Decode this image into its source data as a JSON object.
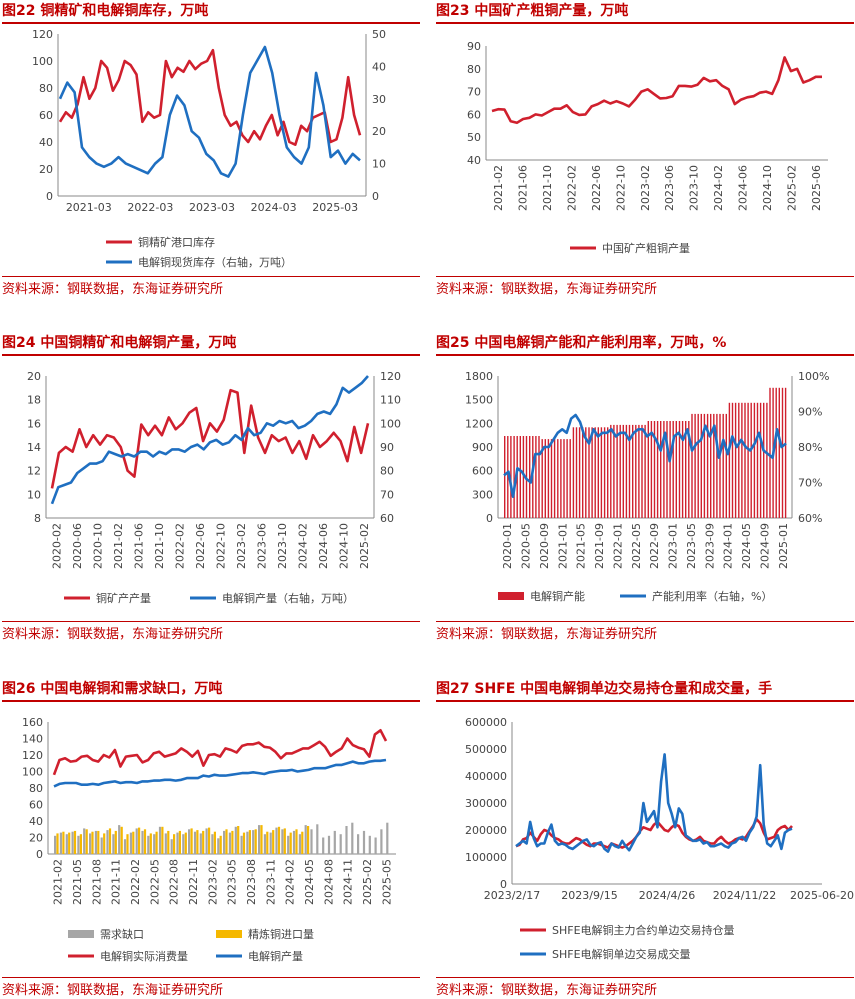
{
  "colors": {
    "red": "#d0202e",
    "blue": "#1f6fc1",
    "gray": "#a6a6a6",
    "gold": "#f5b800",
    "title": "#c00000"
  },
  "panels": [
    {
      "title": "图22  铜精矿和电解铜库存，万吨",
      "source": "资料来源：钢联数据，东海证券研究所"
    },
    {
      "title": "图23  中国矿产粗铜产量，万吨",
      "source": "资料来源：钢联数据，东海证券研究所"
    },
    {
      "title": "图24  中国铜精矿和电解铜产量，万吨",
      "source": "资料来源：钢联数据，东海证券研究所"
    },
    {
      "title": "图25  中国电解铜产能和产能利用率，万吨，%",
      "source": "资料来源：钢联数据，东海证券研究所"
    },
    {
      "title": "图26  中国电解铜和需求缺口，万吨",
      "source": "资料来源：钢联数据，东海证券研究所"
    },
    {
      "title": "图27  SHFE 中国电解铜单边交易持仓量和成交量，手",
      "source": "资料来源：钢联数据，东海证券研究所"
    }
  ],
  "chart_data": [
    {
      "type": "line",
      "id": "c22",
      "yticks": [
        "0",
        "20",
        "40",
        "60",
        "80",
        "100",
        "120"
      ],
      "y2ticks": [
        "0",
        "10",
        "20",
        "30",
        "40",
        "50"
      ],
      "xticks": [
        "2021-03",
        "2022-03",
        "2023-03",
        "2024-03",
        "2025-03"
      ],
      "ylim": [
        0,
        120
      ],
      "y2lim": [
        0,
        50
      ],
      "series": [
        {
          "name": "铜精矿港口库存",
          "axis": "left",
          "color": "red",
          "values": [
            55,
            62,
            58,
            68,
            88,
            72,
            80,
            100,
            95,
            78,
            86,
            100,
            97,
            90,
            55,
            62,
            58,
            60,
            100,
            88,
            95,
            92,
            100,
            94,
            98,
            100,
            108,
            80,
            60,
            52,
            55,
            45,
            40,
            48,
            42,
            52,
            60,
            45,
            55,
            40,
            38,
            52,
            48,
            58,
            60,
            62,
            40,
            42,
            58,
            88,
            60,
            45
          ]
        },
        {
          "name": "电解铜现货库存（右轴，万吨）",
          "axis": "right",
          "color": "blue",
          "values": [
            30,
            35,
            32,
            15,
            12,
            10,
            9,
            10,
            12,
            10,
            9,
            8,
            7,
            10,
            12,
            25,
            31,
            28,
            20,
            18,
            13,
            11,
            7,
            6,
            10,
            25,
            38,
            42,
            46,
            38,
            25,
            15,
            12,
            10,
            15,
            38,
            28,
            12,
            14,
            10,
            13,
            11
          ]
        }
      ],
      "legend": [
        "铜精矿港口库存",
        "电解铜现货库存（右轴，万吨）"
      ]
    },
    {
      "type": "line",
      "id": "c23",
      "yticks": [
        "40",
        "50",
        "60",
        "70",
        "80",
        "90"
      ],
      "ylim": [
        40,
        90
      ],
      "xticks": [
        "2021-02",
        "2021-06",
        "2021-10",
        "2022-02",
        "2022-06",
        "2022-10",
        "2023-02",
        "2023-06",
        "2023-10",
        "2024-02",
        "2024-06",
        "2024-10",
        "2025-02",
        "2025-06"
      ],
      "series": [
        {
          "name": "中国矿产粗铜产量",
          "color": "red",
          "values": [
            61.5,
            62.3,
            62.1,
            57,
            56.3,
            58,
            58.5,
            60,
            59.5,
            61,
            62.5,
            62.5,
            64,
            61,
            59.8,
            60,
            63.5,
            64.5,
            66,
            64.8,
            65.8,
            64.8,
            63.5,
            66.5,
            70,
            71,
            69,
            67,
            67.2,
            68,
            72.5,
            72.5,
            72.2,
            73,
            76,
            74.5,
            75,
            72.5,
            71,
            64.5,
            66.5,
            67.5,
            68,
            69.5,
            70,
            69,
            75,
            85,
            79,
            80,
            74,
            75,
            76.5,
            76.5
          ]
        }
      ],
      "legend": [
        "中国矿产粗铜产量"
      ]
    },
    {
      "type": "line",
      "id": "c24",
      "yticks": [
        "8",
        "10",
        "12",
        "14",
        "16",
        "18",
        "20"
      ],
      "y2ticks": [
        "60",
        "70",
        "80",
        "90",
        "100",
        "110",
        "120"
      ],
      "ylim": [
        8,
        20
      ],
      "y2lim": [
        60,
        120
      ],
      "xticks": [
        "2020-02",
        "2020-06",
        "2020-10",
        "2021-02",
        "2021-06",
        "2021-10",
        "2022-02",
        "2022-06",
        "2022-10",
        "2023-02",
        "2023-06",
        "2023-10",
        "2024-02",
        "2024-06",
        "2024-10",
        "2025-02"
      ],
      "series": [
        {
          "name": "铜矿产产量",
          "axis": "left",
          "color": "red",
          "values": [
            10.5,
            13.5,
            14,
            13.6,
            15.5,
            14,
            15,
            14.2,
            15,
            14.8,
            14,
            12,
            11.5,
            15.9,
            15,
            15.8,
            15,
            16.5,
            15.5,
            16,
            16.9,
            17.3,
            14.5,
            16,
            15.3,
            16.3,
            18.8,
            18.6,
            13.5,
            17.5,
            14.8,
            13.5,
            15,
            14.5,
            14.8,
            13.5,
            14.5,
            13,
            15,
            14,
            14.5,
            15.2,
            14.5,
            12.8,
            15.7,
            13.5,
            16
          ]
        },
        {
          "name": "电解铜产量（右轴，万吨）",
          "axis": "right",
          "color": "blue",
          "values": [
            66,
            73,
            74,
            75,
            79,
            81,
            83,
            83,
            84,
            88,
            87,
            86,
            87,
            86,
            88,
            88,
            86,
            88,
            87,
            89,
            89,
            88,
            90,
            91,
            89,
            92,
            93,
            91,
            92,
            95,
            93,
            98,
            95,
            96,
            100,
            99,
            101,
            100,
            101,
            98,
            99,
            101,
            104,
            105,
            104,
            108,
            115,
            113,
            115,
            117,
            120
          ]
        }
      ],
      "legend": [
        "铜矿产产量",
        "电解铜产量（右轴，万吨）"
      ]
    },
    {
      "type": "bar-line",
      "id": "c25",
      "yticks": [
        "0",
        "300",
        "600",
        "900",
        "1200",
        "1500",
        "1800"
      ],
      "y2ticks": [
        "60%",
        "70%",
        "80%",
        "90%",
        "100%"
      ],
      "ylim": [
        0,
        1800
      ],
      "y2lim": [
        60,
        100
      ],
      "xticks": [
        "2020-01",
        "2020-05",
        "2020-09",
        "2021-01",
        "2021-05",
        "2021-09",
        "2022-01",
        "2022-05",
        "2022-09",
        "2023-01",
        "2023-05",
        "2023-09",
        "2024-01",
        "2024-05",
        "2024-09",
        "2025-01"
      ],
      "bars": {
        "name": "电解铜产能",
        "color": "red",
        "steps": [
          [
            12,
            1040
          ],
          [
            10,
            1000
          ],
          [
            12,
            1150
          ],
          [
            12,
            1180
          ],
          [
            14,
            1230
          ],
          [
            12,
            1320
          ],
          [
            13,
            1460
          ],
          [
            6,
            1650
          ]
        ]
      },
      "series": [
        {
          "name": "产能利用率（右轴，%）",
          "axis": "right",
          "color": "blue",
          "values": [
            72,
            73,
            66,
            74,
            73,
            71,
            70,
            78,
            78,
            80,
            80,
            82,
            84,
            85,
            84,
            88,
            89,
            87,
            83,
            81,
            85,
            83,
            84,
            84,
            85,
            83,
            84,
            84,
            82,
            84,
            85,
            85,
            83,
            84,
            82,
            79,
            84,
            76,
            83,
            84,
            82,
            85,
            79,
            81,
            82,
            86,
            83,
            86,
            77,
            82,
            78,
            83,
            80,
            82,
            80,
            79,
            81,
            84,
            79,
            78,
            77,
            85,
            80,
            81
          ]
        }
      ],
      "legend": [
        "电解铜产能",
        "产能利用率（右轴，%）"
      ]
    },
    {
      "type": "bar-line",
      "id": "c26",
      "yticks": [
        "0",
        "20",
        "40",
        "60",
        "80",
        "100",
        "120",
        "140",
        "160"
      ],
      "ylim": [
        0,
        160
      ],
      "xticks": [
        "2021-02",
        "2021-05",
        "2021-08",
        "2021-11",
        "2022-02",
        "2022-05",
        "2022-08",
        "2022-11",
        "2023-02",
        "2023-05",
        "2023-08",
        "2023-11",
        "2024-02",
        "2024-05",
        "2024-08",
        "2024-11",
        "2025-02",
        "2025-05"
      ],
      "bars_gap": {
        "name": "需求缺口",
        "color": "gray",
        "values": [
          22,
          26,
          24,
          27,
          22,
          31,
          25,
          28,
          20,
          29,
          24,
          35,
          18,
          26,
          31,
          28,
          22,
          24,
          33,
          25,
          18,
          26,
          24,
          30,
          27,
          25,
          31,
          24,
          19,
          28,
          26,
          33,
          22,
          27,
          29,
          35,
          24,
          26,
          32,
          30,
          22,
          28,
          24,
          35,
          30,
          36,
          20,
          22,
          28,
          24,
          34,
          38,
          24,
          28,
          22,
          20,
          30,
          38
        ]
      },
      "bars_import": {
        "name": "精炼铜进口量",
        "color": "gold",
        "values": [
          25,
          27,
          26,
          28,
          24,
          30,
          27,
          28,
          25,
          31,
          28,
          33,
          24,
          27,
          32,
          30,
          25,
          27,
          33,
          28,
          24,
          28,
          26,
          31,
          29,
          28,
          32,
          27,
          22,
          30,
          28,
          34,
          26,
          29,
          30,
          35,
          27,
          29,
          33,
          31,
          26,
          30,
          27,
          34,
          0,
          0,
          0,
          0,
          0,
          0,
          0,
          0,
          0,
          0,
          0,
          0,
          0,
          0
        ]
      },
      "series": [
        {
          "name": "电解铜实际消费量",
          "color": "red",
          "values": [
            96,
            114,
            116,
            112,
            113,
            118,
            119,
            114,
            112,
            120,
            117,
            126,
            106,
            118,
            119,
            120,
            111,
            114,
            122,
            124,
            118,
            120,
            122,
            128,
            124,
            118,
            125,
            107,
            120,
            121,
            118,
            128,
            126,
            123,
            131,
            133,
            133,
            135,
            130,
            129,
            124,
            116,
            122,
            122,
            125,
            128,
            128,
            132,
            136,
            130,
            119,
            124,
            128,
            140,
            132,
            129,
            127,
            118,
            145,
            150,
            137
          ]
        },
        {
          "name": "电解铜产量",
          "color": "blue",
          "values": [
            82,
            85,
            86,
            86,
            86,
            84,
            84,
            85,
            84,
            86,
            87,
            88,
            86,
            87,
            87,
            86,
            88,
            88,
            89,
            89,
            90,
            90,
            89,
            90,
            92,
            92,
            92,
            95,
            94,
            96,
            95,
            95,
            96,
            97,
            98,
            98,
            99,
            98,
            97,
            99,
            100,
            101,
            101,
            102,
            100,
            101,
            102,
            104,
            104,
            104,
            106,
            108,
            108,
            110,
            112,
            110,
            110,
            112,
            113,
            113,
            114
          ]
        }
      ],
      "legend": [
        "需求缺口",
        "精炼铜进口量",
        "电解铜实际消费量",
        "电解铜产量"
      ]
    },
    {
      "type": "line",
      "id": "c27",
      "yticks": [
        "0",
        "100000",
        "200000",
        "300000",
        "400000",
        "500000",
        "600000"
      ],
      "ylim": [
        0,
        600000
      ],
      "xticks": [
        "2023/2/17",
        "2023/9/15",
        "2024/4/26",
        "2024/11/22",
        "2025-06-20"
      ],
      "series": [
        {
          "name": "SHFE电解铜主力合约单边交易持仓量",
          "color": "red",
          "values": [
            140000,
            145000,
            165000,
            170000,
            190000,
            175000,
            160000,
            185000,
            200000,
            195000,
            180000,
            170000,
            165000,
            155000,
            150000,
            150000,
            160000,
            170000,
            165000,
            155000,
            145000,
            140000,
            150000,
            150000,
            145000,
            140000,
            135000,
            150000,
            145000,
            140000,
            135000,
            140000,
            150000,
            160000,
            175000,
            195000,
            210000,
            205000,
            200000,
            220000,
            230000,
            215000,
            200000,
            195000,
            210000,
            220000,
            215000,
            190000,
            175000,
            165000,
            160000,
            165000,
            175000,
            160000,
            155000,
            150000,
            150000,
            165000,
            175000,
            160000,
            150000,
            155000,
            165000,
            170000,
            165000,
            175000,
            195000,
            215000,
            240000,
            225000,
            190000,
            165000,
            170000,
            175000,
            200000,
            210000,
            215000,
            200000,
            215000
          ]
        },
        {
          "name": "SHFE电解铜单边交易成交量",
          "color": "blue",
          "values": [
            140000,
            150000,
            160000,
            150000,
            230000,
            170000,
            140000,
            150000,
            150000,
            190000,
            220000,
            160000,
            145000,
            150000,
            145000,
            135000,
            130000,
            140000,
            150000,
            160000,
            165000,
            145000,
            140000,
            150000,
            155000,
            130000,
            120000,
            150000,
            140000,
            135000,
            160000,
            140000,
            125000,
            150000,
            175000,
            190000,
            300000,
            230000,
            250000,
            270000,
            210000,
            380000,
            480000,
            300000,
            260000,
            210000,
            280000,
            260000,
            180000,
            170000,
            160000,
            160000,
            165000,
            150000,
            155000,
            140000,
            140000,
            145000,
            150000,
            140000,
            135000,
            150000,
            155000,
            170000,
            175000,
            160000,
            190000,
            210000,
            250000,
            440000,
            220000,
            150000,
            140000,
            160000,
            180000,
            130000,
            190000,
            200000,
            205000
          ]
        }
      ],
      "legend": [
        "SHFE电解铜主力合约单边交易持仓量",
        "SHFE电解铜单边交易成交量"
      ]
    }
  ]
}
